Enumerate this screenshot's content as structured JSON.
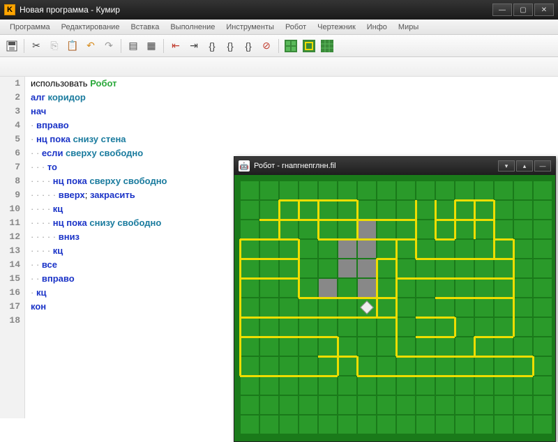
{
  "window": {
    "title": "Новая программа - Кумир",
    "app_icon_letter": "K"
  },
  "menu": {
    "items": [
      "Программа",
      "Редактирование",
      "Вставка",
      "Выполнение",
      "Инструменты",
      "Робот",
      "Чертежник",
      "Инфо",
      "Миры"
    ]
  },
  "code": {
    "lines": [
      {
        "n": 1,
        "tokens": [
          [
            "txt",
            "использовать "
          ],
          [
            "exec",
            "Робот"
          ]
        ]
      },
      {
        "n": 2,
        "tokens": [
          [
            "kw",
            "алг "
          ],
          [
            "id",
            "коридор"
          ]
        ]
      },
      {
        "n": 3,
        "tokens": [
          [
            "kw",
            "нач"
          ]
        ]
      },
      {
        "n": 4,
        "tokens": [
          [
            "dot",
            "· "
          ],
          [
            "kw",
            "вправо"
          ]
        ]
      },
      {
        "n": 5,
        "tokens": [
          [
            "dot",
            "· "
          ],
          [
            "kw",
            "нц пока "
          ],
          [
            "id",
            "снизу стена"
          ]
        ]
      },
      {
        "n": 6,
        "tokens": [
          [
            "dot",
            "· · "
          ],
          [
            "kw",
            "если "
          ],
          [
            "id",
            "сверху свободно"
          ]
        ]
      },
      {
        "n": 7,
        "tokens": [
          [
            "dot",
            "· · · "
          ],
          [
            "kw",
            "то"
          ]
        ]
      },
      {
        "n": 8,
        "tokens": [
          [
            "dot",
            "· · · · "
          ],
          [
            "kw",
            "нц пока "
          ],
          [
            "id",
            "сверху свободно"
          ]
        ]
      },
      {
        "n": 9,
        "tokens": [
          [
            "dot",
            "· · · · · "
          ],
          [
            "kw",
            "вверх"
          ],
          [
            "txt",
            "; "
          ],
          [
            "kw",
            "закрасить"
          ]
        ]
      },
      {
        "n": 10,
        "tokens": [
          [
            "dot",
            "· · · · "
          ],
          [
            "kw",
            "кц"
          ]
        ]
      },
      {
        "n": 11,
        "tokens": [
          [
            "dot",
            "· · · · "
          ],
          [
            "kw",
            "нц пока "
          ],
          [
            "id",
            "снизу свободно"
          ]
        ]
      },
      {
        "n": 12,
        "tokens": [
          [
            "dot",
            "· · · · · "
          ],
          [
            "kw",
            "вниз"
          ]
        ]
      },
      {
        "n": 13,
        "tokens": [
          [
            "dot",
            "· · · · "
          ],
          [
            "kw",
            "кц"
          ]
        ]
      },
      {
        "n": 14,
        "tokens": [
          [
            "dot",
            "· · "
          ],
          [
            "kw",
            "все"
          ]
        ]
      },
      {
        "n": 15,
        "tokens": [
          [
            "dot",
            "· · "
          ],
          [
            "kw",
            "вправо"
          ]
        ]
      },
      {
        "n": 16,
        "tokens": [
          [
            "dot",
            "· "
          ],
          [
            "kw",
            "кц"
          ]
        ]
      },
      {
        "n": 17,
        "tokens": [
          [
            "kw",
            "кон"
          ]
        ]
      },
      {
        "n": 18,
        "tokens": []
      }
    ]
  },
  "robot_window": {
    "title": "Робот - гнапгнепглнн.fil",
    "grid": {
      "cols": 16,
      "rows": 13,
      "cell_size": 28
    },
    "painted_cells": [
      [
        5,
        3
      ],
      [
        5,
        4
      ],
      [
        6,
        2
      ],
      [
        6,
        3
      ],
      [
        6,
        4
      ],
      [
        6,
        5
      ],
      [
        4,
        5
      ]
    ],
    "robot_pos": [
      6,
      6
    ],
    "field_bg": "#2a9a2a",
    "wall_color": "#eedd00",
    "walls_h": [
      [
        2,
        1,
        4
      ],
      [
        3,
        1,
        6
      ],
      [
        11,
        1,
        13
      ],
      [
        12,
        1,
        13
      ],
      [
        1,
        2,
        9
      ],
      [
        10,
        2,
        13
      ],
      [
        0,
        3,
        3
      ],
      [
        4,
        3,
        9
      ],
      [
        10,
        3,
        11
      ],
      [
        13,
        3,
        14
      ],
      [
        0,
        4,
        3
      ],
      [
        7,
        4,
        8
      ],
      [
        9,
        4,
        14
      ],
      [
        0,
        5,
        3
      ],
      [
        8,
        5,
        14
      ],
      [
        3,
        6,
        8
      ],
      [
        10,
        6,
        14
      ],
      [
        3,
        7,
        8
      ],
      [
        9,
        7,
        11
      ],
      [
        0,
        7,
        3
      ],
      [
        0,
        8,
        5
      ],
      [
        9,
        8,
        11
      ],
      [
        12,
        8,
        14
      ],
      [
        4,
        9,
        6
      ],
      [
        8,
        9,
        15
      ],
      [
        0,
        10,
        5
      ],
      [
        6,
        10,
        15
      ]
    ],
    "walls_v": [
      [
        0,
        3,
        10
      ],
      [
        2,
        1,
        3
      ],
      [
        3,
        3,
        6
      ],
      [
        3,
        1,
        2
      ],
      [
        4,
        1,
        3
      ],
      [
        6,
        1,
        3
      ],
      [
        7,
        4,
        7
      ],
      [
        8,
        3,
        9
      ],
      [
        9,
        1,
        4
      ],
      [
        10,
        1,
        3
      ],
      [
        11,
        1,
        3
      ],
      [
        12,
        1,
        3
      ],
      [
        13,
        1,
        4
      ],
      [
        14,
        3,
        8
      ],
      [
        5,
        8,
        10
      ],
      [
        6,
        9,
        10
      ],
      [
        11,
        7,
        8
      ],
      [
        12,
        8,
        9
      ],
      [
        15,
        9,
        10
      ]
    ]
  },
  "colors": {
    "title_bg": "#1a1a1a",
    "menu_bg": "#ececec",
    "toolbar_bg": "#ececec",
    "robot_field": "#2a9a2a",
    "robot_field_dark": "#1a7a1a",
    "wall": "#eedd00",
    "painted": "#888888"
  }
}
